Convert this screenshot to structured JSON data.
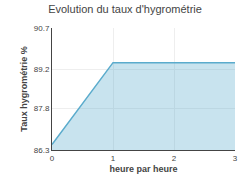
{
  "chart_data": {
    "type": "area",
    "title": "Evolution du taux d'hygrométrie",
    "x_label": "heure par heure",
    "y_label": "Taux hygrométrie %",
    "x": [
      0,
      1,
      3
    ],
    "values": [
      86.5,
      89.45,
      89.45
    ],
    "color": "#5aabcc",
    "xlim": [
      0,
      3
    ],
    "ylim": [
      86.3,
      90.7
    ],
    "xticks": [
      0,
      1,
      2,
      3
    ],
    "yticks": [
      86.3,
      87.8,
      89.2,
      90.7
    ],
    "grid": true
  }
}
